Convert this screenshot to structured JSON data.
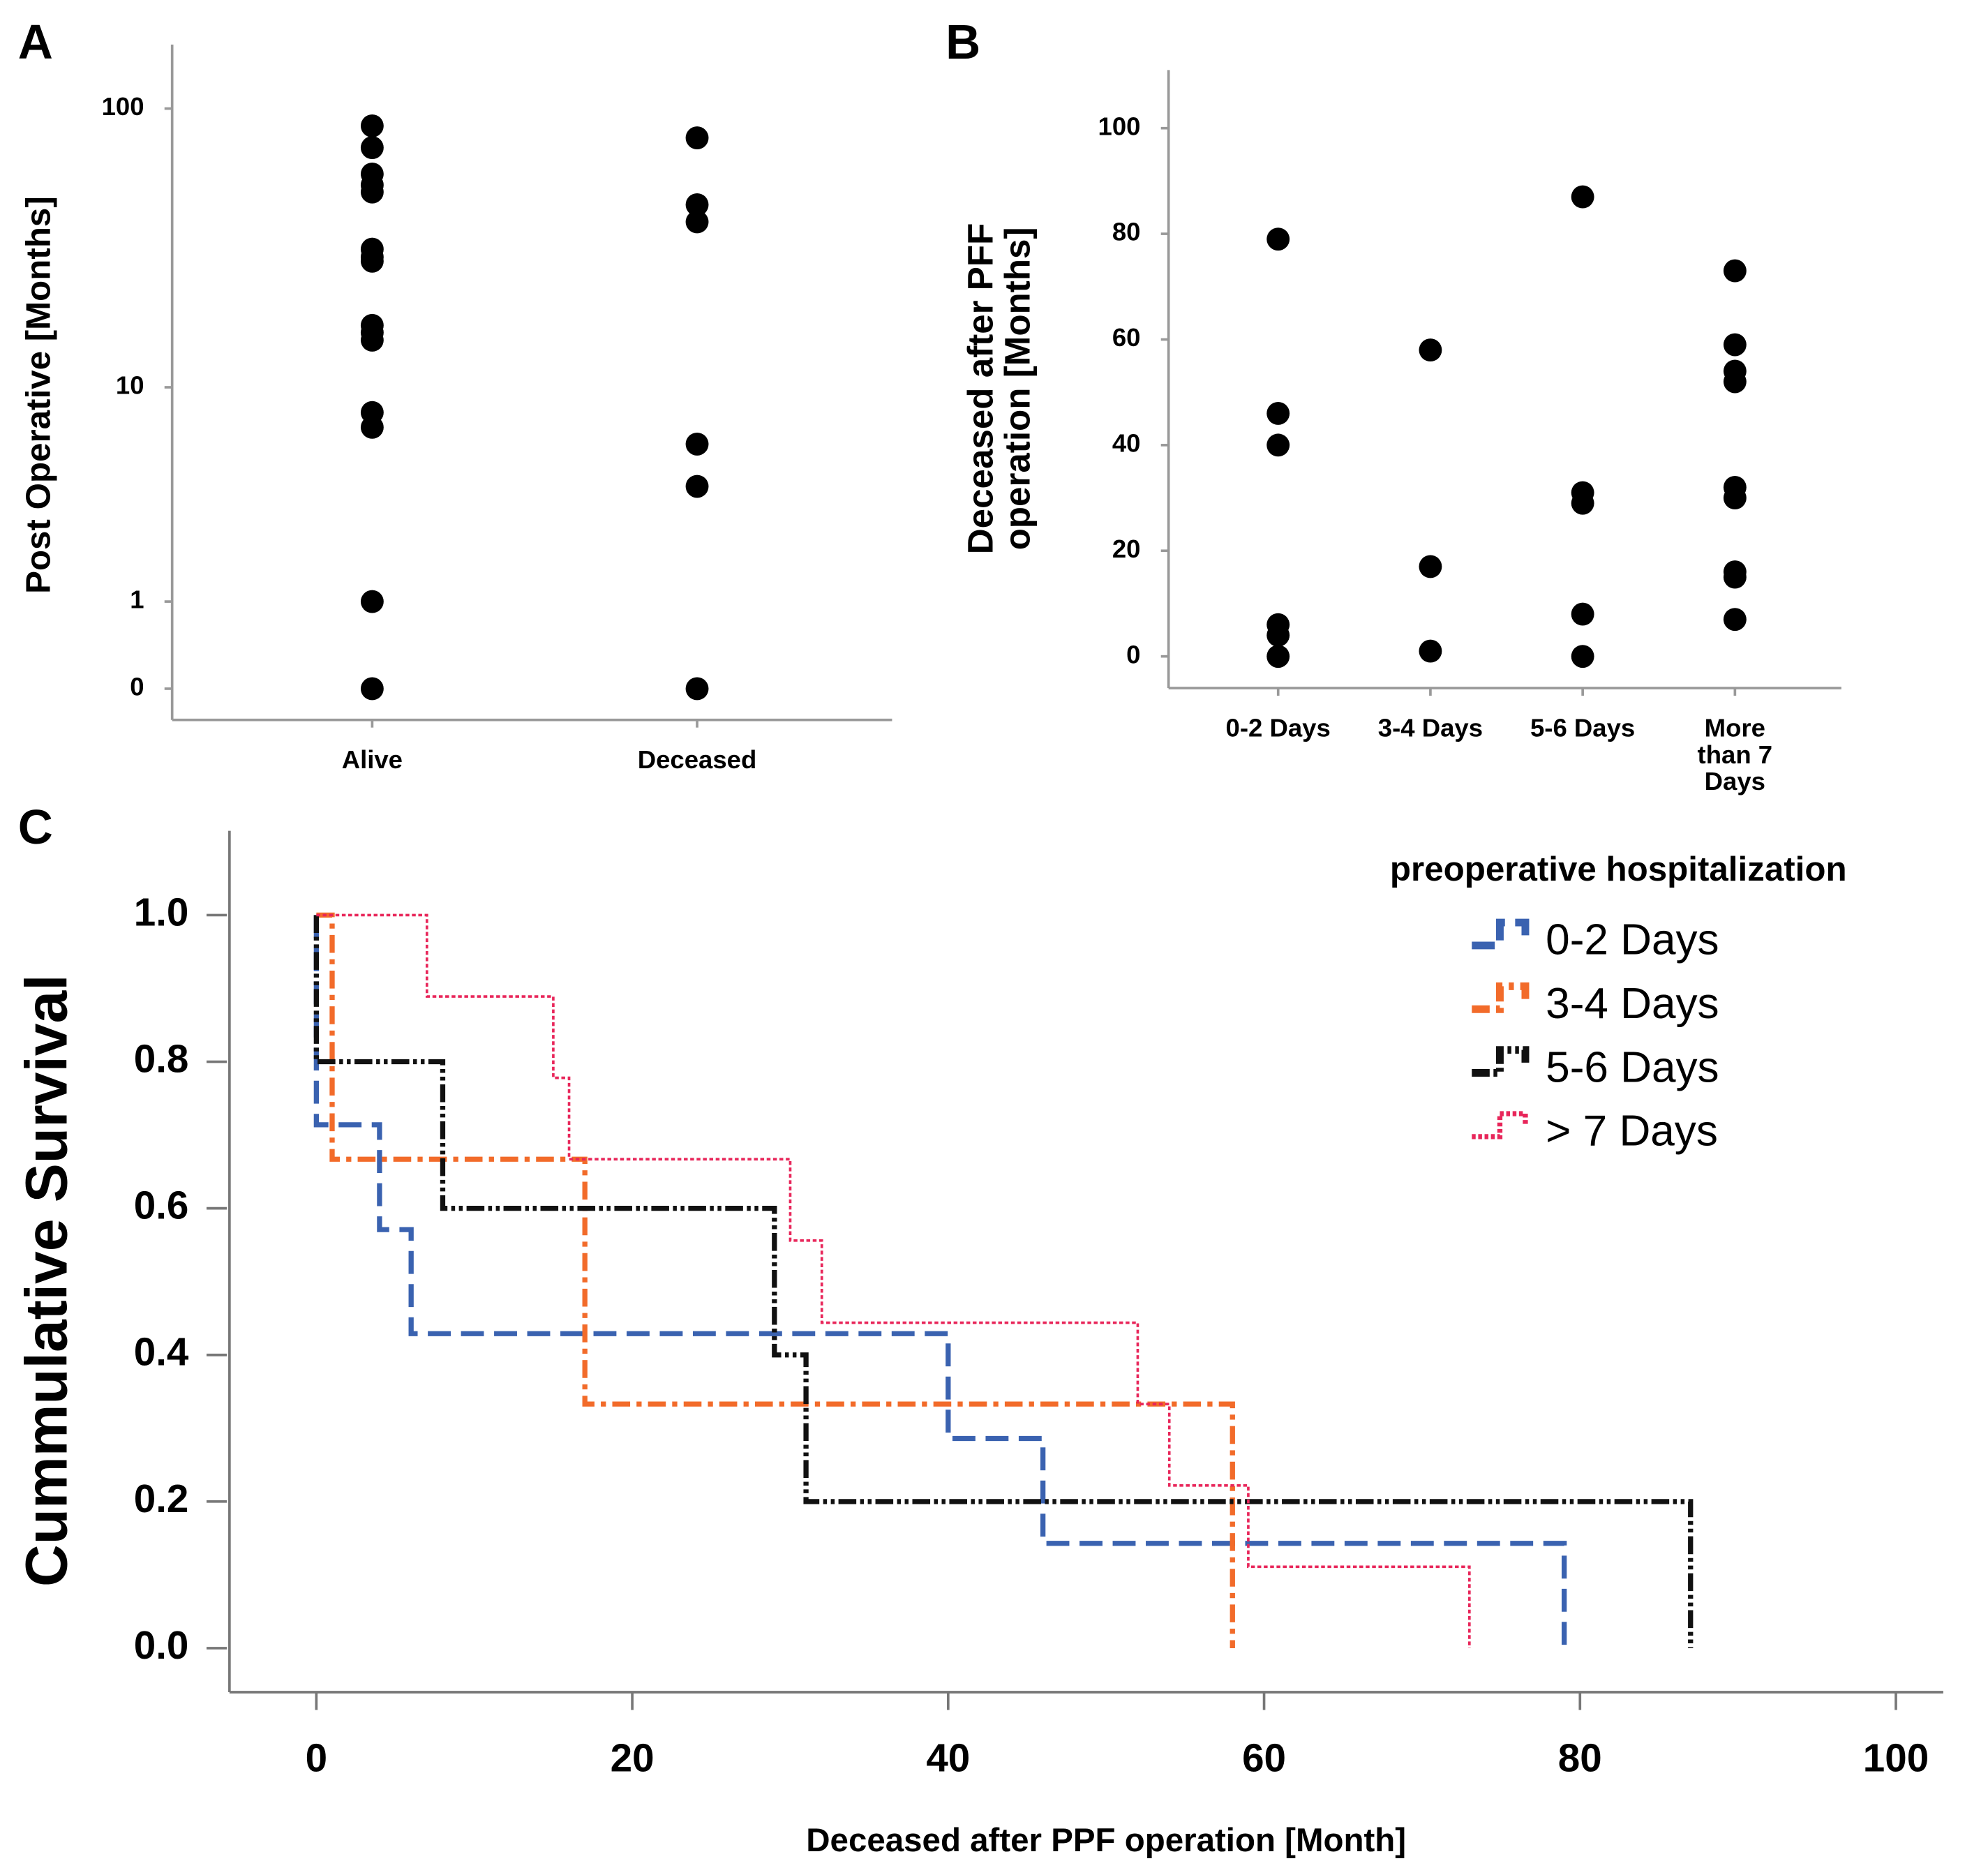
{
  "chart_data": [
    {
      "type": "strip",
      "panel": "A",
      "ylabel": "Post Operative [Months]",
      "categories": [
        "Alive",
        "Deceased"
      ],
      "values": [
        [
          87,
          73,
          59,
          54,
          51,
          32,
          30,
          29,
          17,
          16,
          15,
          8,
          7,
          1,
          0
        ],
        [
          79,
          46,
          40,
          6,
          4,
          0
        ]
      ],
      "color": "#000000",
      "yscale": "log1p",
      "ylim": [
        -0.22,
        167
      ],
      "yticks": [
        0,
        1,
        10,
        100
      ]
    },
    {
      "type": "strip",
      "panel": "B",
      "ylabel": "Deceased after PFF operation [Months]",
      "categories": [
        "0-2 Days",
        "3-4 Days",
        "5-6 Days",
        "More than 7 Days"
      ],
      "values": [
        [
          79,
          46,
          40,
          6,
          4,
          0
        ],
        [
          58,
          17,
          1
        ],
        [
          87,
          31,
          29,
          8,
          0
        ],
        [
          73,
          59,
          54,
          52,
          32,
          30,
          16,
          15,
          7
        ]
      ],
      "color": "#000000",
      "yscale": "linear",
      "ylim": [
        -6,
        111
      ],
      "yticks": [
        0,
        20,
        40,
        60,
        80,
        100
      ]
    },
    {
      "type": "km",
      "panel": "C",
      "xlabel": "Deceased after PPF operation [Month]",
      "ylabel": "Cummulative Survival",
      "legend_title": "preoperative hospitalization",
      "legend": "upper right",
      "xlim": [
        -5.5,
        103
      ],
      "xticks": [
        0,
        20,
        40,
        60,
        80,
        100
      ],
      "ylim": [
        -0.06,
        1.115
      ],
      "yticks": [
        {
          "value": 0,
          "label": "0.0"
        },
        {
          "value": 0.2,
          "label": "0.2"
        },
        {
          "value": 0.4,
          "label": "0.4"
        },
        {
          "value": 0.6,
          "label": "0.6"
        },
        {
          "value": 0.8,
          "label": "0.8"
        },
        {
          "value": 1,
          "label": "1.0"
        }
      ],
      "series": [
        {
          "name": "0-2 Days",
          "color": "#3a62b0",
          "dash": "18,8",
          "width": 4,
          "x": [
            0,
            0,
            4,
            6,
            40,
            46,
            79
          ],
          "values": [
            1,
            0.714,
            0.571,
            0.429,
            0.286,
            0.143,
            0
          ]
        },
        {
          "name": "3-4 Days",
          "color": "#f26b2a",
          "dash": "14,5,4,5",
          "width": 4,
          "x": [
            0,
            1,
            17,
            58
          ],
          "values": [
            1,
            0.667,
            0.333,
            0
          ]
        },
        {
          "name": "5-6 Days",
          "color": "#111111",
          "dash": "14,3,3,3,3,3",
          "width": 4,
          "x": [
            0,
            0,
            8,
            29,
            31,
            87
          ],
          "values": [
            1,
            0.8,
            0.6,
            0.4,
            0.2,
            0
          ]
        },
        {
          "name": "> 7 Days",
          "color": "#e8265a",
          "dash": "3,2",
          "width": 2,
          "x": [
            0,
            7,
            15,
            16,
            30,
            32,
            52,
            54,
            59,
            73
          ],
          "values": [
            1,
            0.889,
            0.778,
            0.667,
            0.556,
            0.444,
            0.333,
            0.222,
            0.111,
            0
          ]
        }
      ]
    }
  ]
}
